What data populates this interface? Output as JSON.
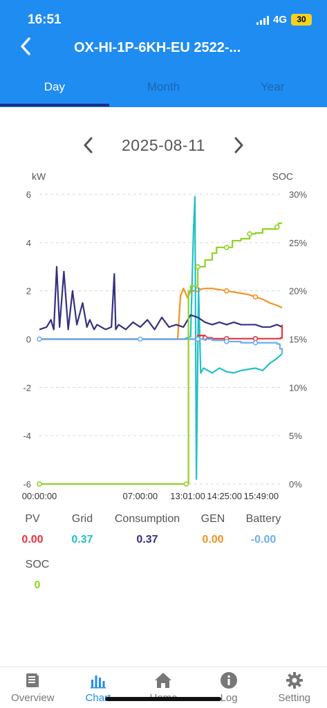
{
  "status": {
    "time": "16:51",
    "network": "4G",
    "battery": "30"
  },
  "header": {
    "title": "OX-HI-1P-6KH-EU 2522-..."
  },
  "tabs": [
    {
      "label": "Day",
      "active": true
    },
    {
      "label": "Month",
      "active": false
    },
    {
      "label": "Year",
      "active": false
    }
  ],
  "date": "2025-08-11",
  "legend": [
    {
      "name": "PV",
      "value": "0.00",
      "color": "#e8333f"
    },
    {
      "name": "Grid",
      "value": "0.37",
      "color": "#22c0c4"
    },
    {
      "name": "Consumption",
      "value": "0.37",
      "color": "#343181"
    },
    {
      "name": "GEN",
      "value": "0.00",
      "color": "#f39221"
    },
    {
      "name": "Battery",
      "value": "-0.00",
      "color": "#6aaef0"
    },
    {
      "name": "SOC",
      "value": "0",
      "color": "#8fd321"
    }
  ],
  "chart_data": {
    "type": "line",
    "ylabel_left": "kW",
    "ylabel_right": "SOC",
    "y_left_ticks": [
      "6",
      "4",
      "2",
      "0",
      "-2",
      "-4",
      "-6"
    ],
    "y_right_ticks": [
      "30%",
      "25%",
      "20%",
      "15%",
      "10%",
      "5%",
      "0%"
    ],
    "ylim_left": [
      -6,
      6
    ],
    "ylim_right": [
      0,
      30
    ],
    "x_ticks": [
      "00:00:00",
      "07:00:00",
      "13:01:00",
      "14:25:00",
      "15:49:00"
    ],
    "grid": true,
    "series": [
      {
        "name": "PV",
        "color": "#e8333f",
        "axis": "left",
        "x": [
          0,
          7.0,
          10.3,
          11.0,
          11.5,
          12.0,
          13.0,
          14.0,
          15.0,
          16.0,
          16.75,
          16.85
        ],
        "y": [
          0,
          0,
          0,
          0.15,
          0.05,
          0.02,
          0.02,
          0.02,
          0.02,
          0.02,
          0.05,
          0.6
        ]
      },
      {
        "name": "Grid",
        "color": "#22c0c4",
        "axis": "left",
        "x": [
          0,
          7.0,
          10.0,
          10.5,
          10.7,
          10.8,
          10.9,
          11.05,
          11.2,
          11.4,
          12.0,
          12.5,
          13.0,
          13.5,
          14.0,
          14.5,
          15.0,
          15.5,
          16.0,
          16.5,
          16.85
        ],
        "y": [
          0,
          0,
          0,
          0.1,
          4.5,
          5.9,
          -5.8,
          2.1,
          -1.4,
          -1.2,
          -1.4,
          -1.2,
          -1.35,
          -1.4,
          -1.3,
          -1.25,
          -1.2,
          -1.3,
          -1.0,
          -0.8,
          -0.6
        ]
      },
      {
        "name": "Consumption",
        "color": "#343181",
        "axis": "left",
        "x": [
          0,
          0.5,
          0.8,
          1.0,
          1.2,
          1.4,
          1.7,
          2.0,
          2.3,
          2.6,
          3.0,
          3.3,
          3.5,
          3.8,
          4.0,
          4.3,
          4.6,
          5.0,
          5.2,
          5.3,
          5.5,
          6.0,
          6.5,
          7.0,
          7.5,
          8.0,
          8.5,
          9.0,
          9.5,
          10.0,
          10.5,
          11.0,
          11.5,
          12.0,
          12.5,
          13.0,
          13.5,
          14.0,
          14.5,
          15.0,
          15.5,
          16.0,
          16.5,
          16.85
        ],
        "y": [
          0.4,
          0.5,
          0.8,
          0.4,
          3.0,
          0.5,
          2.8,
          0.4,
          2.0,
          0.6,
          1.5,
          0.5,
          0.8,
          0.4,
          0.6,
          0.5,
          0.4,
          0.5,
          2.7,
          0.4,
          0.6,
          0.4,
          0.7,
          0.5,
          0.8,
          0.4,
          0.9,
          0.5,
          0.6,
          0.5,
          1.0,
          0.9,
          0.7,
          0.6,
          0.7,
          0.6,
          0.7,
          0.6,
          0.6,
          0.6,
          0.5,
          0.5,
          0.6,
          0.5
        ]
      },
      {
        "name": "GEN",
        "color": "#f39221",
        "axis": "left",
        "x": [
          0,
          9.6,
          9.8,
          10.0,
          10.3,
          10.5,
          10.7,
          11.0,
          11.5,
          12.0,
          12.5,
          13.0,
          13.5,
          14.0,
          14.5,
          15.0,
          15.5,
          16.0,
          16.5,
          16.85
        ],
        "y": [
          0,
          0,
          1.8,
          2.1,
          1.7,
          2.0,
          2.0,
          2.05,
          2.1,
          2.1,
          2.05,
          2.0,
          1.95,
          1.9,
          1.85,
          1.75,
          1.65,
          1.5,
          1.4,
          1.3
        ]
      },
      {
        "name": "Battery",
        "color": "#6aaef0",
        "axis": "left",
        "x": [
          0,
          7.0,
          10.0,
          11.0,
          12.0,
          13.0,
          14.0,
          15.0,
          16.0,
          16.5,
          16.7,
          16.85
        ],
        "y": [
          0,
          0,
          0,
          0,
          -0.05,
          -0.1,
          -0.15,
          -0.15,
          -0.15,
          -0.2,
          -0.4,
          -0.6
        ]
      },
      {
        "name": "SOC",
        "color": "#8fd321",
        "axis": "right",
        "x": [
          0,
          7.0,
          10.2,
          10.35,
          10.5,
          11.0,
          11.5,
          12.0,
          12.3,
          13.0,
          13.4,
          14.0,
          14.6,
          15.0,
          15.5,
          16.0,
          16.5,
          16.6,
          16.85
        ],
        "y": [
          0,
          0,
          0,
          20,
          20.5,
          22.5,
          23.2,
          23.9,
          24.5,
          24.5,
          25.2,
          25.4,
          25.9,
          26.0,
          26.4,
          26.4,
          26.6,
          27.0,
          27.0
        ]
      }
    ]
  },
  "bottom_nav": [
    {
      "label": "Overview",
      "icon": "document-icon",
      "active": false
    },
    {
      "label": "Chart",
      "icon": "bar-chart-icon",
      "active": true
    },
    {
      "label": "Home",
      "icon": "home-icon",
      "active": false
    },
    {
      "label": "Log",
      "icon": "info-icon",
      "active": false
    },
    {
      "label": "Setting",
      "icon": "gear-icon",
      "active": false
    }
  ]
}
